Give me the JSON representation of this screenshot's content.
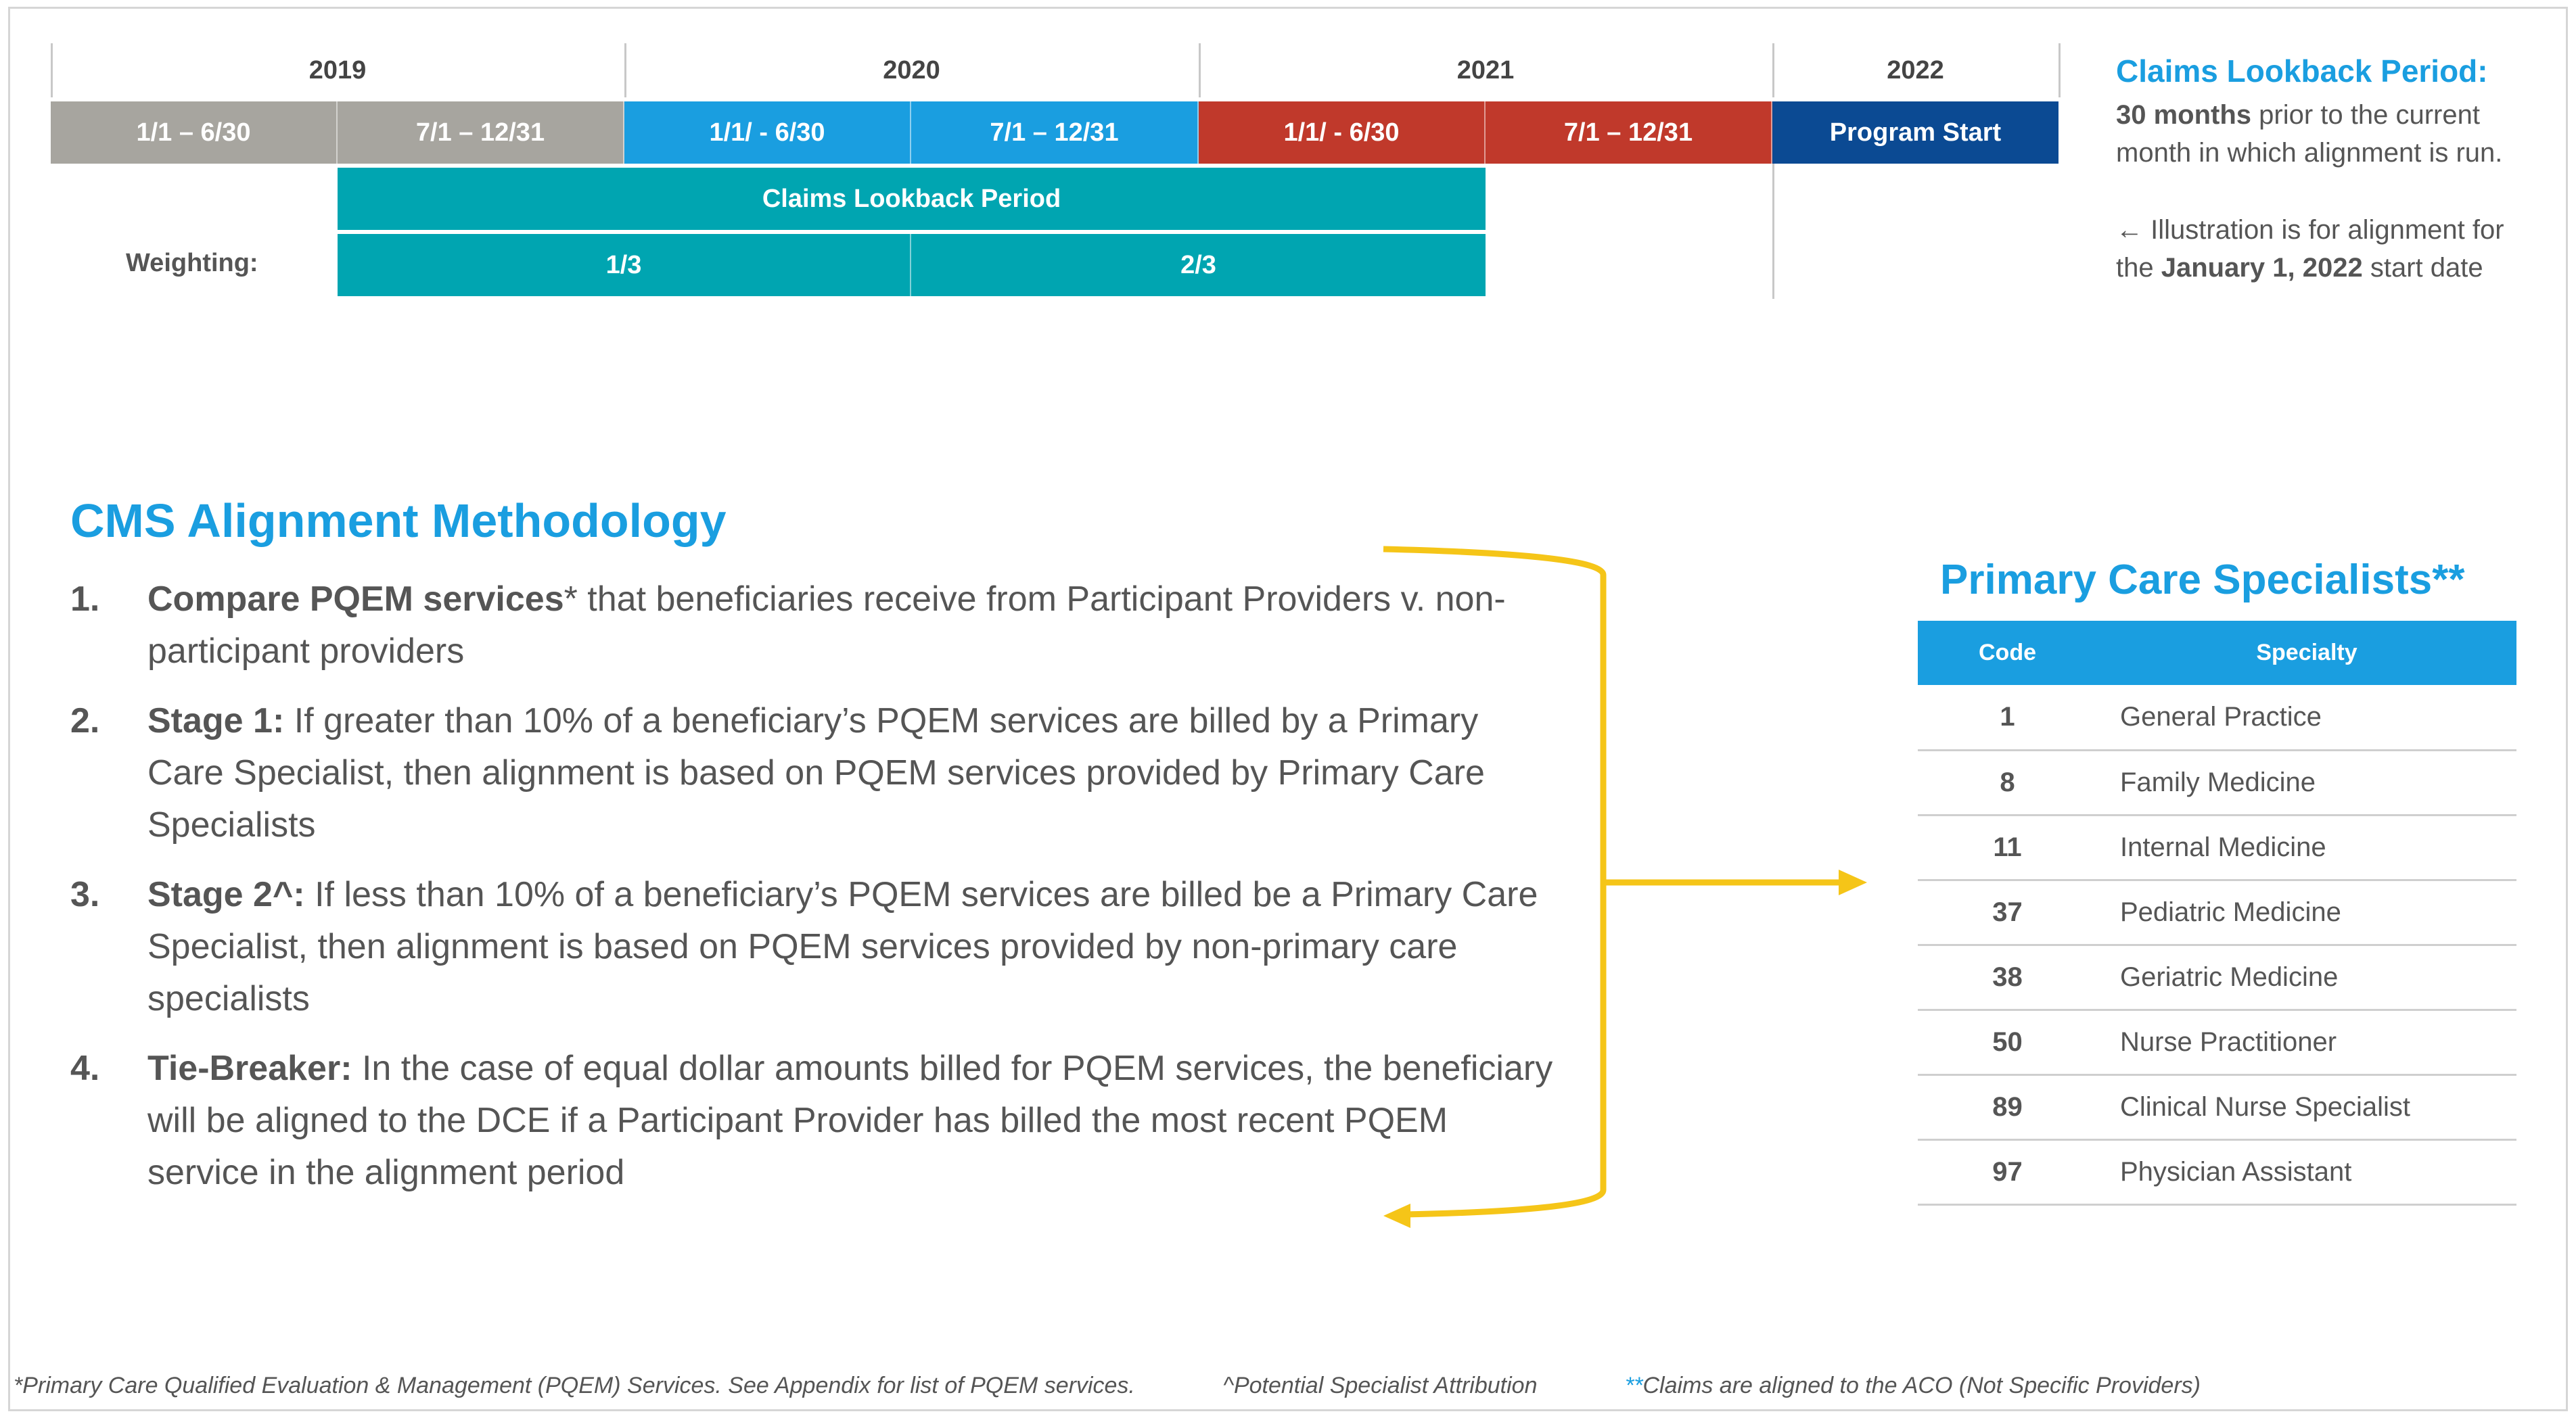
{
  "timeline": {
    "years": [
      "2019",
      "2020",
      "2021",
      "2022"
    ],
    "periods": [
      {
        "label": "1/1 – 6/30",
        "color": "#a7a59f"
      },
      {
        "label": "7/1 – 12/31",
        "color": "#a7a59f"
      },
      {
        "label": "1/1/ - 6/30",
        "color": "#1a9ee0"
      },
      {
        "label": "7/1 – 12/31",
        "color": "#1a9ee0"
      },
      {
        "label": "1/1/ - 6/30",
        "color": "#c0392b"
      },
      {
        "label": "7/1 – 12/31",
        "color": "#c0392b"
      },
      {
        "label": "Program Start",
        "color": "#0b4a93"
      }
    ],
    "lookback_label": "Claims Lookback Period",
    "weighting_label": "Weighting:",
    "weights": [
      "1/3",
      "2/3"
    ]
  },
  "side_note": {
    "title": "Claims Lookback Period:",
    "line1_bold": "30 months",
    "line1_rest": " prior to the current",
    "line2": "month in which alignment is run.",
    "line3": "Illustration is for alignment for",
    "line4_pre": "the ",
    "line4_bold": "January 1,  2022",
    "line4_post": " start date"
  },
  "methodology": {
    "title": "CMS Alignment Methodology",
    "steps": [
      {
        "num": "1.",
        "bold": "Compare PQEM services",
        "text": "* that beneficiaries receive from Participant Providers v. non-participant providers"
      },
      {
        "num": "2.",
        "bold": "Stage 1:",
        "text": " If greater than 10% of a beneficiary’s PQEM services are billed by a Primary Care Specialist, then alignment is based on PQEM services provided by Primary Care Specialists"
      },
      {
        "num": "3.",
        "bold": "Stage 2^:",
        "text": " If less than 10% of a beneficiary’s PQEM services are billed be a Primary Care Specialist, then alignment is based on PQEM services provided by non-primary care specialists"
      },
      {
        "num": "4.",
        "bold": "Tie-Breaker:",
        "text": " In the case of equal dollar amounts billed for PQEM services, the beneficiary will be aligned to the DCE if a Participant Provider has billed the most recent PQEM service in the alignment period"
      }
    ]
  },
  "pcs": {
    "title": "Primary Care Specialists**",
    "headers": [
      "Code",
      "Specialty"
    ],
    "rows": [
      [
        "1",
        "General Practice"
      ],
      [
        "8",
        "Family Medicine"
      ],
      [
        "11",
        "Internal Medicine"
      ],
      [
        "37",
        "Pediatric Medicine"
      ],
      [
        "38",
        "Geriatric Medicine"
      ],
      [
        "50",
        "Nurse Practitioner"
      ],
      [
        "89",
        "Clinical Nurse Specialist"
      ],
      [
        "97",
        "Physician Assistant"
      ]
    ]
  },
  "footer": {
    "note1": "*Primary Care Qualified Evaluation & Management (PQEM) Services. See Appendix for list of PQEM services.",
    "note2": "^Potential Specialist Attribution",
    "note3_star": "**",
    "note3": "Claims are aligned to the ACO (Not Specific Providers)"
  },
  "colors": {
    "accent": "#1a9ee0",
    "teal": "#00a5b1",
    "arrow": "#f5c518"
  }
}
